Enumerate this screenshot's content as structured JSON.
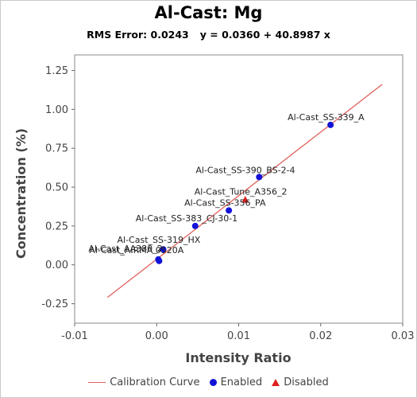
{
  "chart_data": {
    "type": "scatter",
    "title": "Al-Cast: Mg",
    "subtitle": {
      "rms_error": "RMS Error: 0.0243",
      "equation": "y = 0.0360 + 40.8987 x"
    },
    "xlabel": "Intensity Ratio",
    "ylabel": "Concentration (%)",
    "xlim": [
      -0.01,
      0.03
    ],
    "ylim": [
      -0.375,
      1.35
    ],
    "x_ticks": [
      -0.01,
      0.0,
      0.01,
      0.02,
      0.03
    ],
    "x_tick_labels": [
      "-0.01",
      "0.00",
      "0.01",
      "0.02",
      "0.03"
    ],
    "y_ticks": [
      -0.25,
      0.0,
      0.25,
      0.5,
      0.75,
      1.0,
      1.25
    ],
    "y_tick_labels": [
      "-0.25",
      "0.00",
      "0.25",
      "0.50",
      "0.75",
      "1.00",
      "1.25"
    ],
    "calibration_curve": {
      "name": "Calibration Curve",
      "intercept": 0.036,
      "slope": 40.8987,
      "x_range": [
        -0.006,
        0.0275
      ],
      "color": "#e0605c"
    },
    "series": [
      {
        "name": "Enabled",
        "marker": "circle",
        "color": "#1212d8",
        "points": [
          {
            "label": "Al-Cast_SS-339_A",
            "x": 0.0212,
            "y": 0.9
          },
          {
            "label": "Al-Cast_SS-390_BS-2-4",
            "x": 0.0125,
            "y": 0.565
          },
          {
            "label": "Al-Cast_SS-356_PA",
            "x": 0.0088,
            "y": 0.35
          },
          {
            "label": "Al-Cast_SS-383_CJ-30-1",
            "x": 0.0047,
            "y": 0.25
          },
          {
            "label": "Al-Cast_SS-319_HX",
            "x": 0.0008,
            "y": 0.1
          },
          {
            "label": "Al-Cast_AA380_2",
            "x": 0.0002,
            "y": 0.035
          },
          {
            "label": "Al-Cast_AIRMA 0520A",
            "x": 0.0003,
            "y": 0.025
          }
        ]
      },
      {
        "name": "Disabled",
        "marker": "triangle",
        "color": "#e02020",
        "points": [
          {
            "label": "Al-Cast_Tune_A356_2",
            "x": 0.0108,
            "y": 0.42
          }
        ]
      }
    ],
    "legend": {
      "position": "bottom",
      "items": [
        "Calibration Curve",
        "Enabled",
        "Disabled"
      ]
    },
    "grid": false
  }
}
